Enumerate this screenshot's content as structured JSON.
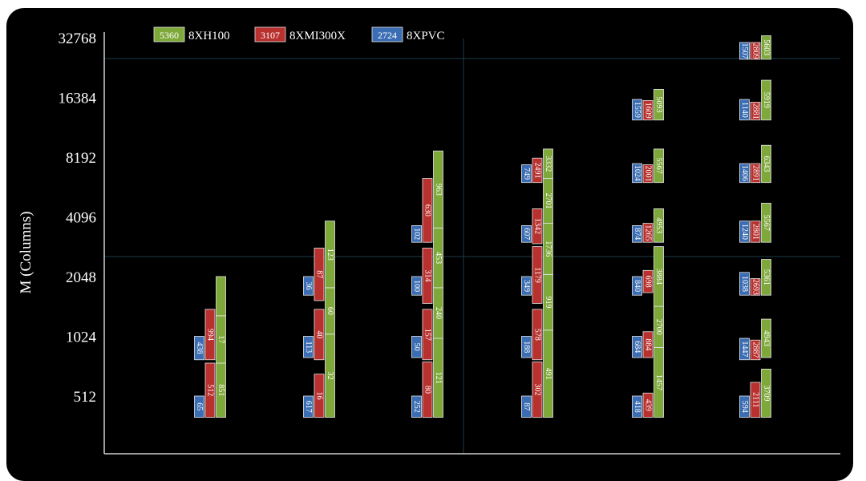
{
  "chart_data": {
    "type": "bar",
    "ylabel": "M (Columns)",
    "y_scale": "log2",
    "ylim": [
      362,
      32768
    ],
    "yticks": [
      {
        "v": 512,
        "label": "512"
      },
      {
        "v": 1024,
        "label": "1024"
      },
      {
        "v": 2048,
        "label": "2048"
      },
      {
        "v": 4096,
        "label": "4096"
      },
      {
        "v": 8192,
        "label": "8192"
      },
      {
        "v": 16384,
        "label": "16384"
      },
      {
        "v": 32768,
        "label": "32768"
      }
    ],
    "legend": {
      "placement": "top-left",
      "items": [
        {
          "series": "h100",
          "value": "5360",
          "label": "8XH100"
        },
        {
          "series": "mi300x",
          "value": "3107",
          "label": "8XMI300X"
        },
        {
          "series": "pvc",
          "value": "2724",
          "label": "8XPVC"
        }
      ]
    },
    "series": [
      {
        "key": "pvc",
        "name": "8XPVC",
        "color": "#3a6db3"
      },
      {
        "key": "mi300x",
        "name": "8XMI300X",
        "color": "#b8312f"
      },
      {
        "key": "h100",
        "name": "8XH100",
        "color": "#7ea83a"
      }
    ],
    "groups": [
      {
        "segments": [
          {
            "series": "pvc",
            "y0": 400,
            "y1": 512,
            "label": "65"
          },
          {
            "series": "pvc",
            "y0": 780,
            "y1": 1024,
            "label": "438"
          },
          {
            "series": "mi300x",
            "y0": 400,
            "y1": 750,
            "label": "512"
          },
          {
            "series": "mi300x",
            "y0": 780,
            "y1": 1400,
            "label": "994"
          },
          {
            "series": "h100",
            "y0": 400,
            "y1": 750,
            "label": "851"
          },
          {
            "series": "h100",
            "y0": 750,
            "y1": 1300,
            "label": "17"
          },
          {
            "series": "h100",
            "y0": 1300,
            "y1": 2048,
            "label": ""
          }
        ]
      },
      {
        "segments": [
          {
            "series": "pvc",
            "y0": 400,
            "y1": 512,
            "label": "617"
          },
          {
            "series": "pvc",
            "y0": 800,
            "y1": 1024,
            "label": "113"
          },
          {
            "series": "pvc",
            "y0": 1650,
            "y1": 2048,
            "label": "36"
          },
          {
            "series": "mi300x",
            "y0": 400,
            "y1": 660,
            "label": "16"
          },
          {
            "series": "mi300x",
            "y0": 780,
            "y1": 1400,
            "label": "40"
          },
          {
            "series": "mi300x",
            "y0": 1550,
            "y1": 2850,
            "label": "87"
          },
          {
            "series": "h100",
            "y0": 400,
            "y1": 1050,
            "label": "32"
          },
          {
            "series": "h100",
            "y0": 1050,
            "y1": 1800,
            "label": "60"
          },
          {
            "series": "h100",
            "y0": 1800,
            "y1": 3900,
            "label": "123"
          }
        ]
      },
      {
        "segments": [
          {
            "series": "pvc",
            "y0": 400,
            "y1": 512,
            "label": "252"
          },
          {
            "series": "pvc",
            "y0": 800,
            "y1": 1024,
            "label": "50"
          },
          {
            "series": "pvc",
            "y0": 1650,
            "y1": 2048,
            "label": "100"
          },
          {
            "series": "pvc",
            "y0": 3050,
            "y1": 3700,
            "label": "102"
          },
          {
            "series": "mi300x",
            "y0": 400,
            "y1": 760,
            "label": "80"
          },
          {
            "series": "mi300x",
            "y0": 780,
            "y1": 1400,
            "label": "157"
          },
          {
            "series": "mi300x",
            "y0": 1500,
            "y1": 2850,
            "label": "314"
          },
          {
            "series": "mi300x",
            "y0": 3050,
            "y1": 6400,
            "label": "630"
          },
          {
            "series": "h100",
            "y0": 400,
            "y1": 1000,
            "label": "121"
          },
          {
            "series": "h100",
            "y0": 1000,
            "y1": 1800,
            "label": "240"
          },
          {
            "series": "h100",
            "y0": 1800,
            "y1": 3600,
            "label": "453"
          },
          {
            "series": "h100",
            "y0": 3600,
            "y1": 8800,
            "label": "963"
          }
        ]
      },
      {
        "segments": [
          {
            "series": "pvc",
            "y0": 400,
            "y1": 512,
            "label": "87"
          },
          {
            "series": "pvc",
            "y0": 800,
            "y1": 1024,
            "label": "188"
          },
          {
            "series": "pvc",
            "y0": 1650,
            "y1": 2048,
            "label": "349"
          },
          {
            "series": "pvc",
            "y0": 3050,
            "y1": 3700,
            "label": "607"
          },
          {
            "series": "pvc",
            "y0": 6100,
            "y1": 7500,
            "label": "749"
          },
          {
            "series": "mi300x",
            "y0": 400,
            "y1": 760,
            "label": "302"
          },
          {
            "series": "mi300x",
            "y0": 780,
            "y1": 1400,
            "label": "578"
          },
          {
            "series": "mi300x",
            "y0": 1500,
            "y1": 2900,
            "label": "1179"
          },
          {
            "series": "mi300x",
            "y0": 3000,
            "y1": 4500,
            "label": "1342"
          },
          {
            "series": "mi300x",
            "y0": 6100,
            "y1": 8100,
            "label": "2491"
          },
          {
            "series": "h100",
            "y0": 400,
            "y1": 1100,
            "label": "491"
          },
          {
            "series": "h100",
            "y0": 1100,
            "y1": 2100,
            "label": "919"
          },
          {
            "series": "h100",
            "y0": 2100,
            "y1": 3800,
            "label": "1736"
          },
          {
            "series": "h100",
            "y0": 3800,
            "y1": 6400,
            "label": "2701"
          },
          {
            "series": "h100",
            "y0": 6400,
            "y1": 9000,
            "label": "3332"
          }
        ]
      },
      {
        "segments": [
          {
            "series": "pvc",
            "y0": 400,
            "y1": 512,
            "label": "418"
          },
          {
            "series": "pvc",
            "y0": 800,
            "y1": 1024,
            "label": "684"
          },
          {
            "series": "pvc",
            "y0": 1650,
            "y1": 2048,
            "label": "840"
          },
          {
            "series": "pvc",
            "y0": 3050,
            "y1": 3700,
            "label": "874"
          },
          {
            "series": "pvc",
            "y0": 6100,
            "y1": 7600,
            "label": "1024"
          },
          {
            "series": "pvc",
            "y0": 12600,
            "y1": 16000,
            "label": "1559"
          },
          {
            "series": "mi300x",
            "y0": 400,
            "y1": 530,
            "label": "439"
          },
          {
            "series": "mi300x",
            "y0": 800,
            "y1": 1080,
            "label": "884"
          },
          {
            "series": "mi300x",
            "y0": 1700,
            "y1": 2200,
            "label": "698"
          },
          {
            "series": "mi300x",
            "y0": 3050,
            "y1": 3800,
            "label": "1265"
          },
          {
            "series": "mi300x",
            "y0": 6100,
            "y1": 7500,
            "label": "2001"
          },
          {
            "series": "mi300x",
            "y0": 12600,
            "y1": 15800,
            "label": "1609"
          },
          {
            "series": "h100",
            "y0": 400,
            "y1": 900,
            "label": "1457"
          },
          {
            "series": "h100",
            "y0": 900,
            "y1": 1450,
            "label": "2700"
          },
          {
            "series": "h100",
            "y0": 1450,
            "y1": 2900,
            "label": "3884"
          },
          {
            "series": "h100",
            "y0": 3050,
            "y1": 4500,
            "label": "4953"
          },
          {
            "series": "h100",
            "y0": 6100,
            "y1": 9000,
            "label": "5567"
          },
          {
            "series": "h100",
            "y0": 12600,
            "y1": 18000,
            "label": "5093"
          }
        ]
      },
      {
        "segments": [
          {
            "series": "pvc",
            "y0": 400,
            "y1": 512,
            "label": "594"
          },
          {
            "series": "pvc",
            "y0": 780,
            "y1": 1000,
            "label": "1447"
          },
          {
            "series": "pvc",
            "y0": 1650,
            "y1": 2150,
            "label": "1038"
          },
          {
            "series": "pvc",
            "y0": 3050,
            "y1": 3900,
            "label": "1240"
          },
          {
            "series": "pvc",
            "y0": 6100,
            "y1": 7600,
            "label": "1406"
          },
          {
            "series": "pvc",
            "y0": 12600,
            "y1": 16000,
            "label": "1140"
          },
          {
            "series": "pvc",
            "y0": 25500,
            "y1": 31000,
            "label": "1507"
          },
          {
            "series": "mi300x",
            "y0": 400,
            "y1": 600,
            "label": "2111"
          },
          {
            "series": "mi300x",
            "y0": 780,
            "y1": 980,
            "label": "2887"
          },
          {
            "series": "mi300x",
            "y0": 1650,
            "y1": 2000,
            "label": "2693"
          },
          {
            "series": "mi300x",
            "y0": 3050,
            "y1": 3900,
            "label": "2801"
          },
          {
            "series": "mi300x",
            "y0": 6100,
            "y1": 7600,
            "label": "2891"
          },
          {
            "series": "mi300x",
            "y0": 12600,
            "y1": 15500,
            "label": "2881"
          },
          {
            "series": "mi300x",
            "y0": 25500,
            "y1": 31000,
            "label": "2809"
          },
          {
            "series": "h100",
            "y0": 400,
            "y1": 700,
            "label": "3709"
          },
          {
            "series": "h100",
            "y0": 800,
            "y1": 1250,
            "label": "4943"
          },
          {
            "series": "h100",
            "y0": 1650,
            "y1": 2500,
            "label": "5361"
          },
          {
            "series": "h100",
            "y0": 3050,
            "y1": 4800,
            "label": "5567"
          },
          {
            "series": "h100",
            "y0": 6100,
            "y1": 9400,
            "label": "6343"
          },
          {
            "series": "h100",
            "y0": 12600,
            "y1": 20000,
            "label": "5919"
          },
          {
            "series": "h100",
            "y0": 25500,
            "y1": 33500,
            "label": "5603"
          }
        ]
      }
    ]
  }
}
